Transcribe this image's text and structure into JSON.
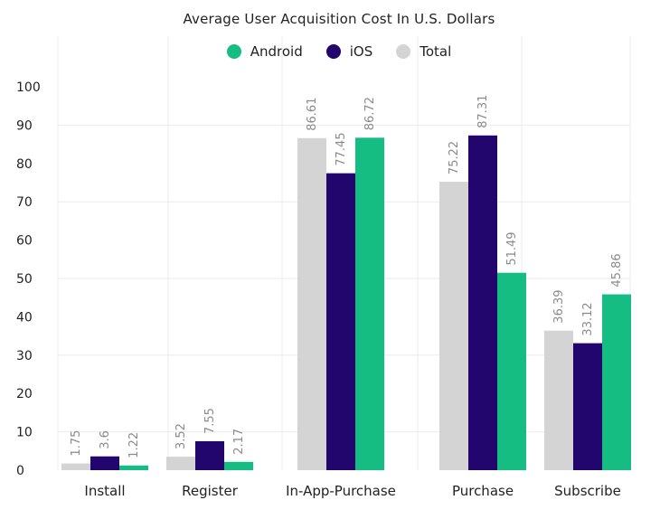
{
  "chart_data": {
    "type": "bar",
    "title": "Average User Acquisition Cost In U.S. Dollars",
    "categories": [
      "Install",
      "Register",
      "In-App-Purchase",
      "Purchase",
      "Subscribe"
    ],
    "series": [
      {
        "name": "Total",
        "color": "#d4d4d4",
        "values": [
          1.75,
          3.52,
          86.61,
          75.22,
          36.39
        ]
      },
      {
        "name": "iOS",
        "color": "#22066e",
        "values": [
          3.6,
          7.55,
          77.45,
          87.31,
          33.12
        ]
      },
      {
        "name": "Android",
        "color": "#16bd82",
        "values": [
          1.22,
          2.17,
          86.72,
          51.49,
          45.86
        ]
      }
    ],
    "legend_order": [
      "Android",
      "iOS",
      "Total"
    ],
    "legend_position": "top-center",
    "y_ticks": [
      "0",
      "10",
      "20",
      "30",
      "40",
      "50",
      "60",
      "70",
      "80",
      "90",
      "100"
    ],
    "ylim": [
      0,
      100
    ],
    "grid": true,
    "xlabel": "",
    "ylabel": ""
  }
}
